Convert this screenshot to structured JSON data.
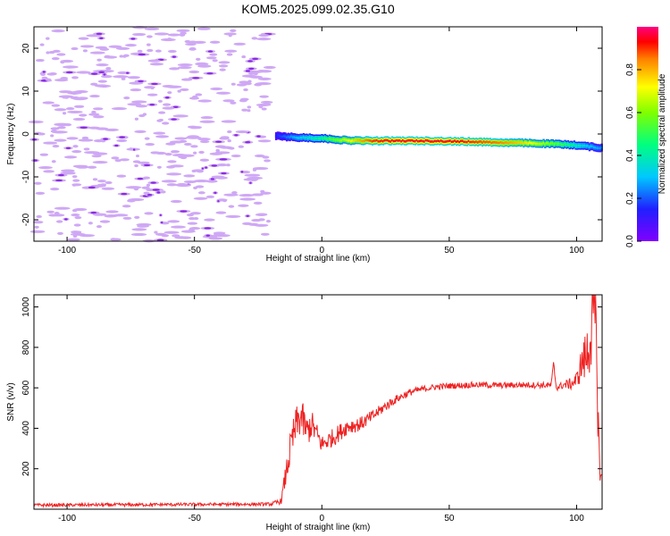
{
  "page": {
    "title": "KOM5.2025.099.02.35.G10"
  },
  "colors": {
    "snr_line": "#ee2222",
    "axis": "#000000",
    "background": "#ffffff"
  },
  "chart_data": [
    {
      "type": "heatmap",
      "xlabel": "Height of straight line (km)",
      "ylabel": "Frequency (Hz)",
      "xlim": [
        -113,
        110
      ],
      "ylim": [
        -25,
        25
      ],
      "x_ticks": [
        -100,
        -50,
        0,
        50,
        100
      ],
      "y_ticks": [
        -20,
        -10,
        0,
        10,
        20
      ],
      "colorbar": {
        "label": "Normalized spectral amplitude",
        "range": [
          0,
          1
        ],
        "ticks": [
          "0.0",
          "0.2",
          "0.4",
          "0.6",
          "0.8"
        ],
        "colormap": "rainbow (purple to magenta)"
      },
      "ridge": {
        "description_values": "dominant frequency track (Hz) vs height (km)",
        "x": [
          -18,
          -10,
          0,
          10,
          20,
          30,
          40,
          50,
          60,
          70,
          80,
          90,
          100,
          106,
          110
        ],
        "y": [
          -0.5,
          -0.8,
          -1.0,
          -1.5,
          -1.6,
          -1.6,
          -1.6,
          -1.7,
          -1.8,
          -2.0,
          -2.1,
          -2.3,
          -2.6,
          -3.0,
          -3.3
        ],
        "amplitude": [
          0.15,
          0.3,
          0.45,
          0.7,
          0.9,
          0.95,
          0.95,
          0.95,
          0.9,
          0.85,
          0.75,
          0.6,
          0.4,
          0.3,
          0.25
        ]
      },
      "noise_region": {
        "x_range": [
          -113,
          -20
        ],
        "amplitude": 0.05
      }
    },
    {
      "type": "line",
      "xlabel": "Height of straight line (km)",
      "ylabel": "SNR (v/v)",
      "xlim": [
        -113,
        110
      ],
      "ylim": [
        0,
        1060
      ],
      "x_ticks": [
        -100,
        -50,
        0,
        50,
        100
      ],
      "y_ticks": [
        200,
        400,
        600,
        800,
        1000
      ],
      "series": [
        {
          "x": [
            -113,
            -20,
            -16,
            -14,
            -12,
            -10,
            -8,
            -6,
            -4,
            0,
            5,
            10,
            15,
            20,
            25,
            30,
            35,
            40,
            45,
            50,
            60,
            70,
            80,
            90,
            91,
            92,
            95,
            98,
            100,
            102,
            104,
            106,
            107,
            108,
            109,
            110
          ],
          "y": [
            20,
            25,
            40,
            180,
            320,
            420,
            460,
            380,
            420,
            320,
            360,
            410,
            420,
            460,
            510,
            550,
            580,
            595,
            605,
            610,
            615,
            612,
            615,
            612,
            720,
            600,
            615,
            620,
            640,
            720,
            760,
            900,
            1000,
            700,
            200,
            150
          ],
          "noise_amplitude": [
            8,
            8,
            15,
            60,
            90,
            90,
            90,
            80,
            70,
            45,
            45,
            40,
            35,
            30,
            25,
            20,
            18,
            16,
            15,
            15,
            15,
            15,
            15,
            15,
            20,
            15,
            20,
            30,
            40,
            90,
            140,
            200,
            260,
            240,
            60,
            30
          ]
        }
      ]
    }
  ]
}
